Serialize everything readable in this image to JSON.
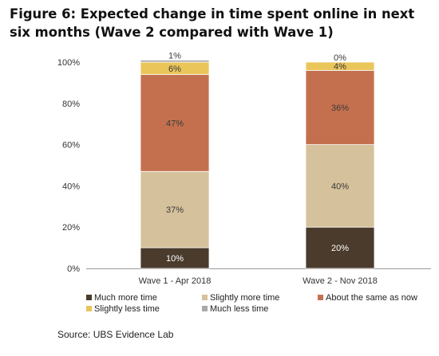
{
  "title": "Figure 6: Expected change in time spent online in next six months (Wave 2 compared with Wave 1)",
  "source": "Source:  UBS Evidence Lab",
  "chart_data": {
    "type": "bar",
    "stacked": true,
    "categories": [
      "Wave 1 - Apr 2018",
      "Wave 2 - Nov 2018"
    ],
    "series": [
      {
        "name": "Much more time",
        "color": "#4a3b2c",
        "values": [
          10,
          20
        ],
        "labels": [
          "10%",
          "20%"
        ]
      },
      {
        "name": "Slightly more time",
        "color": "#d5c19b",
        "values": [
          37,
          40
        ],
        "labels": [
          "37%",
          "40%"
        ]
      },
      {
        "name": "About the same as now",
        "color": "#c4704f",
        "values": [
          47,
          36
        ],
        "labels": [
          "47%",
          "36%"
        ]
      },
      {
        "name": "Slightly less time",
        "color": "#eac55a",
        "values": [
          6,
          4
        ],
        "labels": [
          "6%",
          "4%"
        ]
      },
      {
        "name": "Much less time",
        "color": "#a8a8a8",
        "values": [
          1,
          0
        ],
        "labels": [
          "1%",
          "0%"
        ]
      }
    ],
    "yticks": [
      "0%",
      "20%",
      "40%",
      "60%",
      "80%",
      "100%"
    ],
    "ylim": [
      0,
      100
    ],
    "legend_position": "bottom"
  }
}
